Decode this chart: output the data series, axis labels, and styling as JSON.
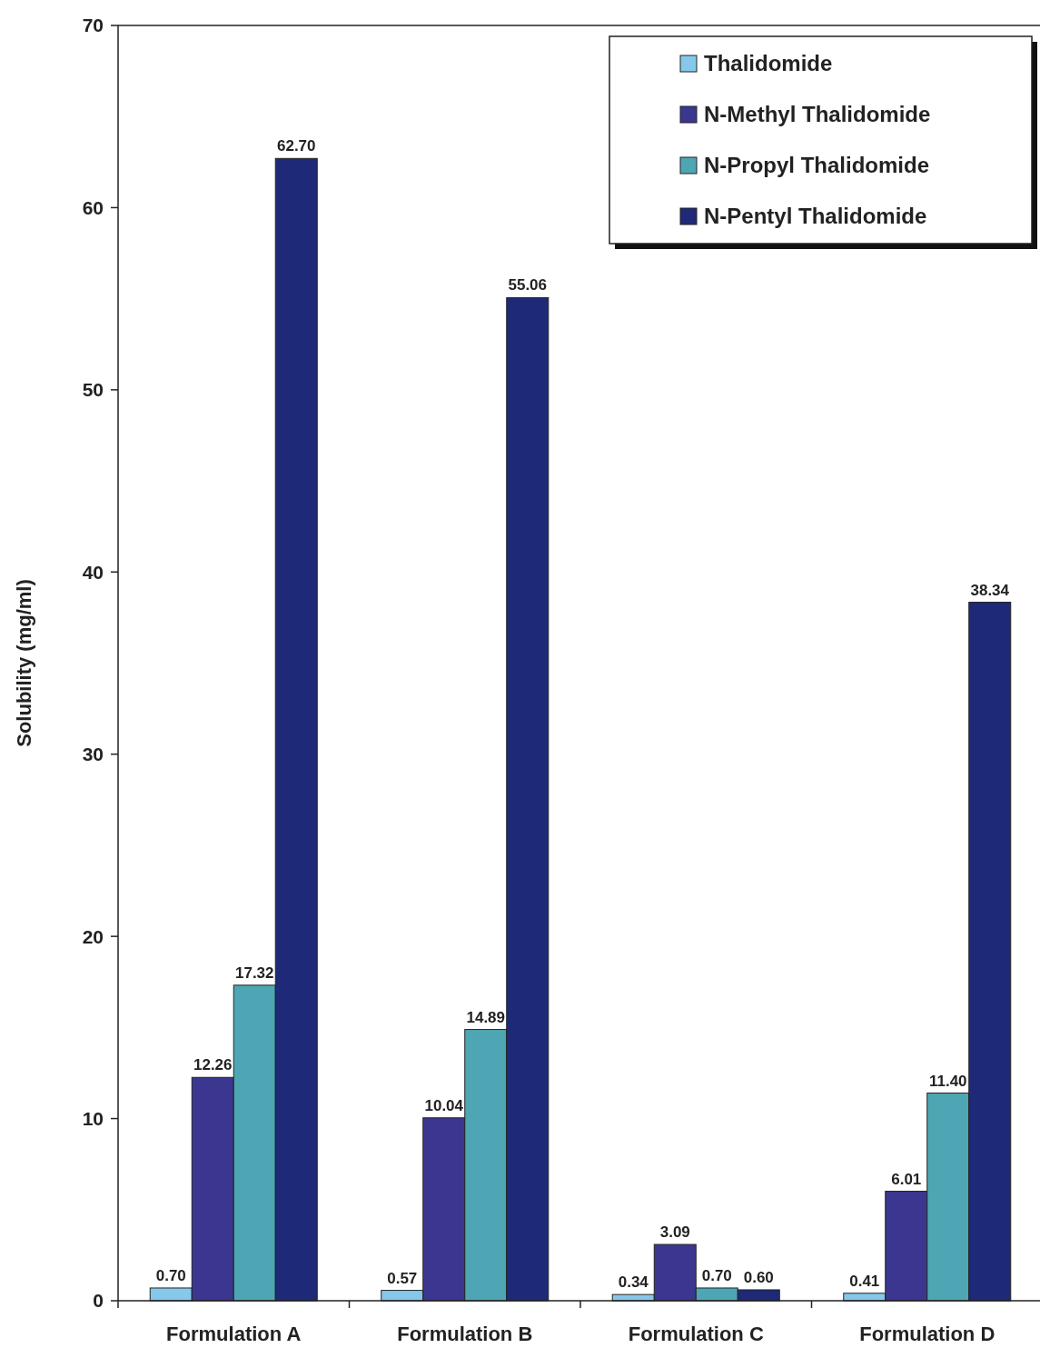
{
  "chart_data": {
    "type": "bar",
    "ylabel": "Solubility (mg/ml)",
    "categories": [
      "Formulation A",
      "Formulation B",
      "Formulation C",
      "Formulation D"
    ],
    "series": [
      {
        "name": "Thalidomide",
        "color": "#86c8ec",
        "values": [
          0.7,
          0.57,
          0.34,
          0.41
        ],
        "value_labels": [
          "0.70",
          "0.57",
          "0.34",
          "0.41"
        ]
      },
      {
        "name": "N-Methyl Thalidomide",
        "color": "#3b3790",
        "values": [
          12.26,
          10.04,
          3.09,
          6.01
        ],
        "value_labels": [
          "12.26",
          "10.04",
          "3.09",
          "6.01"
        ]
      },
      {
        "name": "N-Propyl Thalidomide",
        "color": "#4ea6b4",
        "values": [
          17.32,
          14.89,
          0.7,
          11.4
        ],
        "value_labels": [
          "17.32",
          "14.89",
          "0.70",
          "11.40"
        ]
      },
      {
        "name": "N-Pentyl Thalidomide",
        "color": "#1e2a78",
        "values": [
          62.7,
          55.06,
          0.6,
          38.34
        ],
        "value_labels": [
          "62.70",
          "55.06",
          "0.60",
          "38.34"
        ]
      }
    ],
    "ylim": [
      0,
      70
    ],
    "yticks": [
      0,
      10,
      20,
      30,
      40,
      50,
      60,
      70
    ],
    "legend": "top right",
    "grid": false
  }
}
